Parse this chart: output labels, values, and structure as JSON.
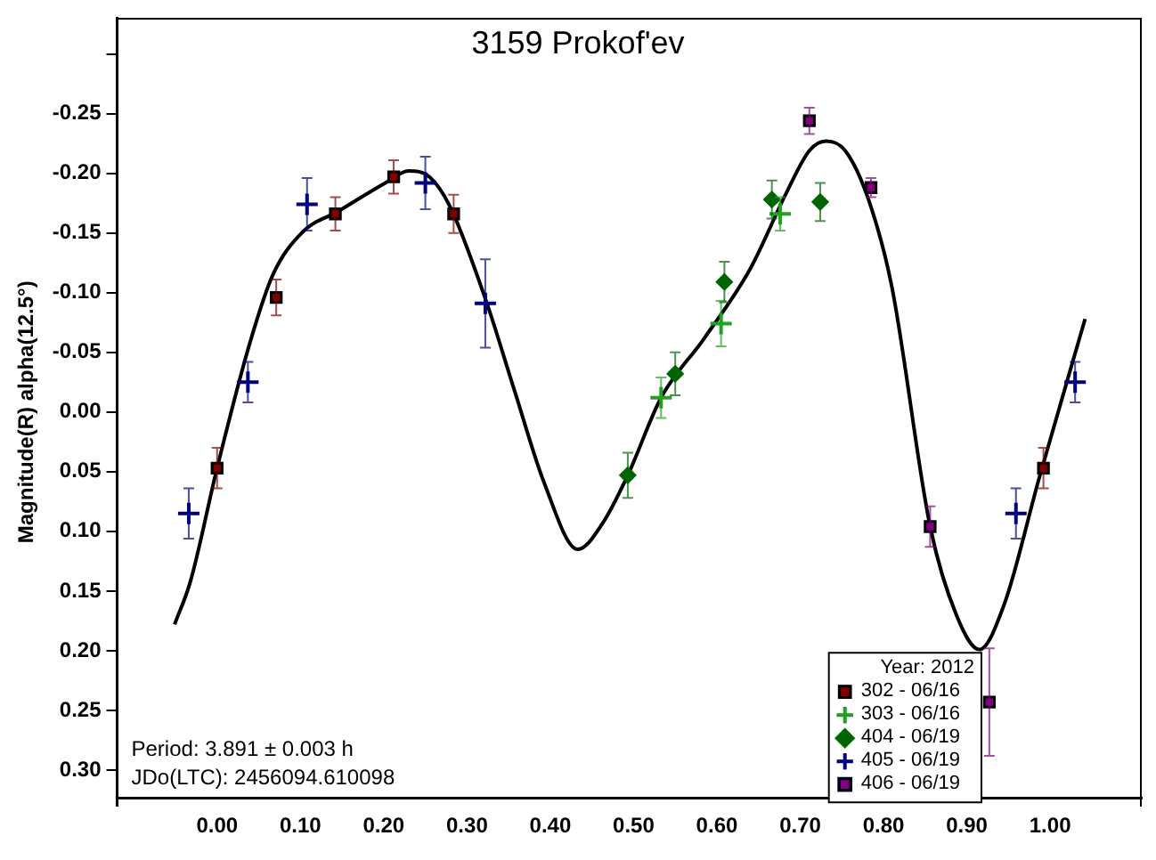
{
  "chart_data": {
    "type": "scatter",
    "title": "3159 Prokof'ev",
    "ylabel": "Magnitude(R) alpha(12.5°)",
    "legend_title": "Year: 2012",
    "legend": "bottom right",
    "annotations": [
      "Period: 3.891 ± 0.003 h",
      "JDo(LTC): 2456094.610098"
    ],
    "xlim": [
      -0.12,
      1.11
    ],
    "ylim": [
      0.33,
      -0.33
    ],
    "xticks": [
      {
        "value": 0,
        "label": "0.00"
      },
      {
        "value": 0.1,
        "label": "0.10"
      },
      {
        "value": 0.2,
        "label": "0.20"
      },
      {
        "value": 0.3,
        "label": "0.30"
      },
      {
        "value": 0.4,
        "label": "0.40"
      },
      {
        "value": 0.5,
        "label": "0.50"
      },
      {
        "value": 0.6,
        "label": "0.60"
      },
      {
        "value": 0.7,
        "label": "0.70"
      },
      {
        "value": 0.8,
        "label": "0.80"
      },
      {
        "value": 0.9,
        "label": "0.90"
      },
      {
        "value": 1,
        "label": "1.00"
      }
    ],
    "yticks": [
      {
        "value": -0.3,
        "label": null
      },
      {
        "value": -0.25,
        "label": "-0.25"
      },
      {
        "value": -0.2,
        "label": "-0.20"
      },
      {
        "value": -0.15,
        "label": "-0.15"
      },
      {
        "value": -0.1,
        "label": "-0.10"
      },
      {
        "value": -0.05,
        "label": "-0.05"
      },
      {
        "value": 0,
        "label": "0.00"
      },
      {
        "value": 0.05,
        "label": "0.05"
      },
      {
        "value": 0.1,
        "label": "0.10"
      },
      {
        "value": 0.15,
        "label": "0.15"
      },
      {
        "value": 0.2,
        "label": "0.20"
      },
      {
        "value": 0.25,
        "label": "0.25"
      },
      {
        "value": 0.3,
        "label": "0.30"
      }
    ],
    "series": [
      {
        "type": "line",
        "color": "#000000",
        "marker": "none",
        "line_style": "solid",
        "x": [
          -0.051,
          -0.032,
          0.0,
          0.039,
          0.067,
          0.103,
          0.145,
          0.202,
          0.23,
          0.255,
          0.279,
          0.322,
          0.357,
          0.393,
          0.433,
          0.463,
          0.493,
          0.533,
          0.584,
          0.64,
          0.683,
          0.711,
          0.731,
          0.754,
          0.782,
          0.81,
          0.856,
          0.888,
          0.915,
          0.945,
          0.987,
          1.042
        ],
        "values": [
          0.178,
          0.142,
          0.047,
          -0.057,
          -0.115,
          -0.151,
          -0.168,
          -0.192,
          -0.202,
          -0.197,
          -0.173,
          -0.095,
          -0.018,
          0.06,
          0.115,
          0.093,
          0.053,
          -0.012,
          -0.061,
          -0.12,
          -0.183,
          -0.219,
          -0.227,
          -0.219,
          -0.178,
          -0.105,
          0.096,
          0.171,
          0.199,
          0.161,
          0.055,
          -0.078
        ]
      },
      {
        "name": "302 - 06/16",
        "color": "#800000",
        "marker": "square",
        "x": [
          0.0,
          0.071,
          0.142,
          0.212,
          0.284,
          0.992
        ],
        "values": [
          0.047,
          -0.096,
          -0.166,
          -0.197,
          -0.166,
          0.047
        ],
        "errors": [
          0.017,
          0.015,
          0.014,
          0.014,
          0.016,
          0.017
        ]
      },
      {
        "name": "303 - 06/16",
        "color": "#22a022",
        "marker": "cross",
        "x": [
          0.533,
          0.605,
          0.676
        ],
        "values": [
          -0.012,
          -0.074,
          -0.166
        ],
        "errors": [
          0.017,
          0.019,
          0.014
        ]
      },
      {
        "name": "404 - 06/19",
        "color": "#006400",
        "marker": "diamond",
        "x": [
          0.493,
          0.55,
          0.609,
          0.666,
          0.724
        ],
        "values": [
          0.053,
          -0.032,
          -0.109,
          -0.178,
          -0.176
        ],
        "errors": [
          0.019,
          0.018,
          0.017,
          0.016,
          0.016
        ]
      },
      {
        "name": "405 - 06/19",
        "color": "#000080",
        "marker": "cross",
        "x": [
          -0.034,
          0.037,
          0.108,
          0.25,
          0.322,
          0.959,
          1.03
        ],
        "values": [
          0.085,
          -0.025,
          -0.174,
          -0.192,
          -0.091,
          0.085,
          -0.025
        ],
        "errors": [
          0.021,
          0.017,
          0.022,
          0.022,
          0.037,
          0.021,
          0.017
        ]
      },
      {
        "name": "406 - 06/19",
        "color": "#800080",
        "marker": "square",
        "x": [
          0.711,
          0.785,
          0.856,
          0.927
        ],
        "values": [
          -0.244,
          -0.188,
          0.096,
          0.243
        ],
        "errors": [
          0.011,
          0.008,
          0.017,
          0.045
        ]
      }
    ]
  }
}
